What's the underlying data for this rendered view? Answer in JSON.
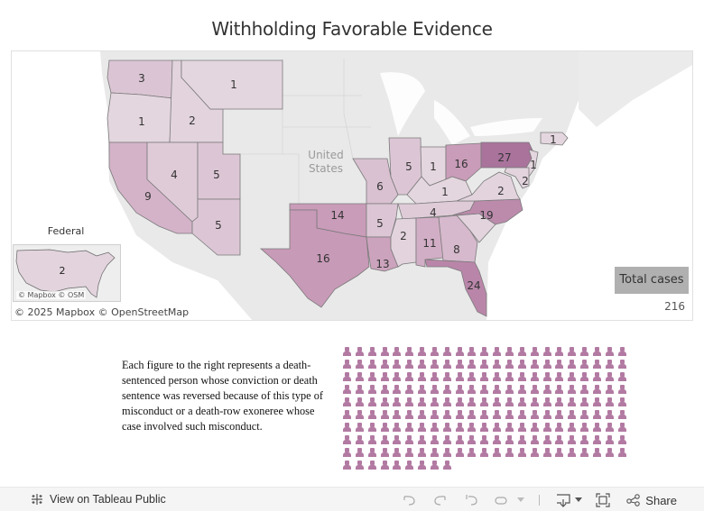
{
  "title": "Withholding Favorable Evidence",
  "map": {
    "country_label_line1": "United",
    "country_label_line2": "States",
    "attribution": "© 2025 Mapbox  © OpenStreetMap",
    "color_scale": {
      "min": "#e4d6df",
      "mid": "#c99cb9",
      "max": "#a9739c"
    },
    "states": [
      {
        "state": "WA",
        "value": 3
      },
      {
        "state": "OR",
        "value": 1
      },
      {
        "state": "ID",
        "value": 2
      },
      {
        "state": "MT",
        "value": 1
      },
      {
        "state": "CA",
        "value": 9
      },
      {
        "state": "NV",
        "value": 4
      },
      {
        "state": "UT",
        "value": 5
      },
      {
        "state": "AZ",
        "value": 5
      },
      {
        "state": "TX",
        "value": 16
      },
      {
        "state": "OK",
        "value": 14
      },
      {
        "state": "MO",
        "value": 6
      },
      {
        "state": "AR",
        "value": 5
      },
      {
        "state": "LA",
        "value": 13
      },
      {
        "state": "IL",
        "value": 5
      },
      {
        "state": "IN",
        "value": 1
      },
      {
        "state": "OH",
        "value": 16
      },
      {
        "state": "KY",
        "value": 1
      },
      {
        "state": "TN",
        "value": 4
      },
      {
        "state": "MS",
        "value": 2
      },
      {
        "state": "AL",
        "value": 11
      },
      {
        "state": "GA",
        "value": 8
      },
      {
        "state": "FL",
        "value": 24
      },
      {
        "state": "NC",
        "value": 19
      },
      {
        "state": "VA",
        "value": 2
      },
      {
        "state": "PA",
        "value": 27
      },
      {
        "state": "NJ",
        "value": 1
      },
      {
        "state": "MD",
        "value": 2
      },
      {
        "state": "MA",
        "value": 1
      }
    ]
  },
  "federal": {
    "title": "Federal",
    "value": "2",
    "attribution": "© Mapbox  © OSM"
  },
  "legend": {
    "total_label": "Total cases",
    "total_value": "216"
  },
  "description": "Each figure to the right represents a death-sentenced person whose conviction or death sentence was reversed because of this type of misconduct or a death-row exoneree whose case involved such misconduct.",
  "people_grid": {
    "count": 216,
    "columns": 23,
    "icon": "person-icon",
    "color": "#b27aa2"
  },
  "footer": {
    "view_label": "View on Tableau Public",
    "share_label": "Share",
    "icons": [
      "tableau-logo-icon",
      "undo-icon",
      "redo-icon",
      "revert-icon",
      "refresh-icon",
      "pause-dropdown-icon",
      "download-icon",
      "fullscreen-icon",
      "share-icon"
    ]
  }
}
